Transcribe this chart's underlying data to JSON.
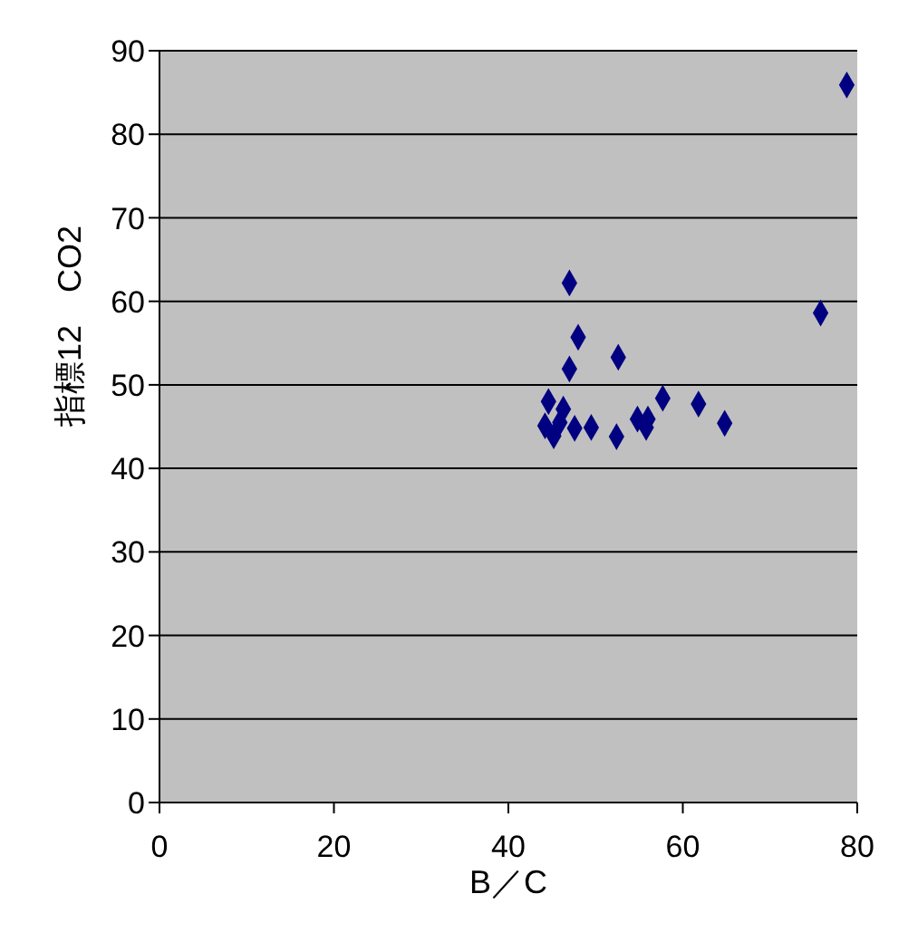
{
  "chart_data": {
    "type": "scatter",
    "xlabel": "B／C",
    "ylabel": "指標12　CO2",
    "x": [
      78.8,
      75.8,
      47.0,
      48.0,
      47.0,
      52.6,
      44.6,
      46.3,
      57.7,
      61.8,
      64.8,
      54.8,
      56.0,
      55.8,
      52.4,
      49.5,
      47.6,
      44.2,
      45.2,
      45.9
    ],
    "series": [
      {
        "color": "#000080",
        "values": [
          85.9,
          58.6,
          62.2,
          55.7,
          51.9,
          53.3,
          48.0,
          47.1,
          48.4,
          47.7,
          45.4,
          45.9,
          45.9,
          44.9,
          43.8,
          44.9,
          44.8,
          45.1,
          43.9,
          45.5
        ]
      }
    ],
    "xlim": [
      0,
      80
    ],
    "xticks": [
      0,
      20,
      40,
      60,
      80
    ],
    "ylim": [
      0,
      90
    ],
    "yticks": [
      0,
      10,
      20,
      30,
      40,
      50,
      60,
      70,
      80,
      90
    ],
    "grid": "y",
    "marker": "diamond"
  }
}
